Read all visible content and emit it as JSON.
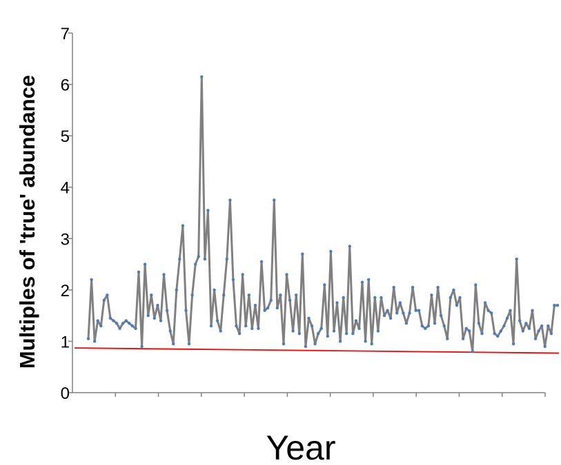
{
  "chart_data": {
    "type": "line",
    "xlabel": "Year",
    "ylabel": "Multiples of 'true' abundance",
    "ylim": [
      0,
      7
    ],
    "yticks": [
      "0",
      "1",
      "2",
      "3",
      "4",
      "5",
      "6",
      "7"
    ],
    "x_tick_count": 11,
    "grid": false,
    "legend": "none",
    "colors": {
      "series_line": "#808080",
      "series_markers": "#4a7ebb",
      "reference_line": "#ff0000",
      "axis": "#808080"
    },
    "series": [
      {
        "values": [
          1.05,
          2.2,
          1.0,
          1.4,
          1.3,
          1.8,
          1.9,
          1.45,
          1.4,
          1.35,
          1.25,
          1.35,
          1.4,
          1.35,
          1.3,
          1.25,
          2.35,
          0.9,
          2.5,
          1.5,
          1.9,
          1.45,
          1.7,
          1.4,
          2.3,
          1.6,
          1.2,
          0.95,
          2.0,
          2.6,
          3.25,
          1.6,
          0.95,
          1.9,
          2.5,
          2.65,
          6.15,
          2.6,
          3.55,
          1.3,
          2.0,
          1.4,
          1.2,
          1.9,
          2.6,
          3.75,
          2.2,
          1.3,
          1.15,
          2.3,
          1.3,
          1.9,
          1.25,
          1.7,
          1.25,
          2.55,
          1.6,
          1.65,
          1.8,
          3.75,
          1.65,
          1.9,
          0.95,
          2.3,
          1.8,
          1.2,
          1.9,
          1.15,
          2.7,
          0.9,
          1.45,
          1.3,
          0.95,
          1.15,
          1.25,
          2.1,
          1.1,
          2.75,
          1.2,
          1.75,
          1.0,
          1.85,
          1.15,
          2.85,
          1.15,
          1.4,
          1.25,
          2.15,
          1.0,
          2.2,
          0.95,
          1.85,
          1.2,
          1.85,
          1.5,
          1.6,
          1.45,
          2.05,
          1.55,
          1.75,
          1.55,
          1.35,
          1.55,
          2.05,
          1.6,
          1.6,
          1.3,
          1.25,
          1.3,
          1.9,
          1.35,
          2.05,
          1.5,
          1.3,
          1.05,
          1.85,
          2.0,
          1.7,
          1.85,
          1.05,
          1.25,
          1.2,
          0.8,
          2.1,
          1.35,
          1.15,
          1.75,
          1.6,
          1.55,
          1.15,
          1.1,
          1.2,
          1.3,
          1.45,
          1.6,
          0.95,
          2.6,
          1.4,
          1.2,
          1.35,
          1.25,
          1.6,
          1.05,
          1.2,
          1.3,
          0.9,
          1.3,
          1.15,
          1.7,
          1.7
        ]
      }
    ],
    "reference_line": {
      "y_start": 0.87,
      "y_end": 0.77
    }
  }
}
